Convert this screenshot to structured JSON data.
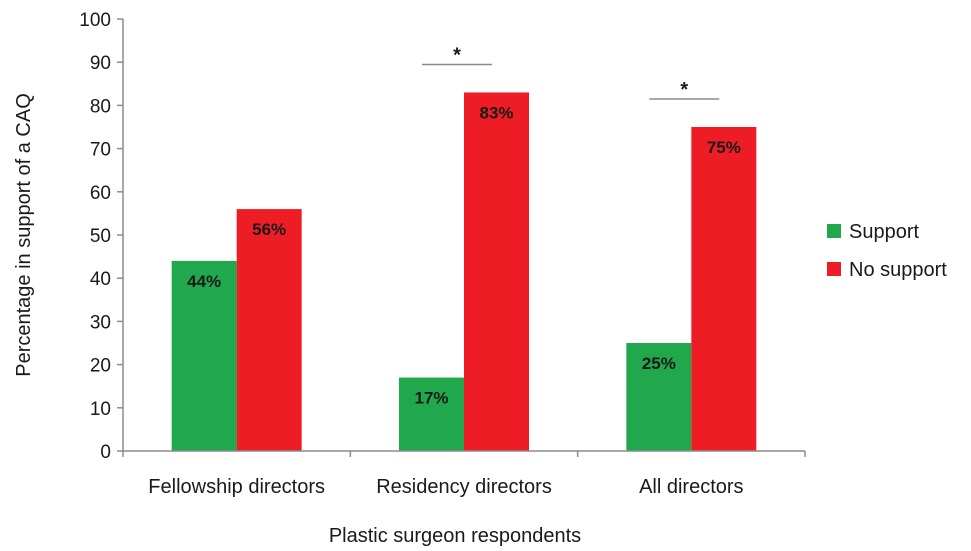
{
  "chart_data": {
    "type": "bar",
    "title": "",
    "xlabel": "Plastic surgeon respondents",
    "ylabel": "Percentage in support of a CAQ",
    "ylim": [
      0,
      100
    ],
    "yticks": [
      0,
      10,
      20,
      30,
      40,
      50,
      60,
      70,
      80,
      90,
      100
    ],
    "categories": [
      "Fellowship directors",
      "Residency directors",
      "All directors"
    ],
    "series": [
      {
        "name": "Support",
        "values": [
          44,
          17,
          25
        ],
        "labels": [
          "44%",
          "17%",
          "25%"
        ],
        "color": "#21a84d"
      },
      {
        "name": "No support",
        "values": [
          56,
          83,
          75
        ],
        "labels": [
          "56%",
          "83%",
          "75%"
        ],
        "color": "#ee1c25"
      }
    ],
    "significance": [
      {
        "category_index": 1,
        "symbol": "*"
      },
      {
        "category_index": 2,
        "symbol": "*"
      }
    ],
    "grid": false,
    "legend_position": "right"
  }
}
